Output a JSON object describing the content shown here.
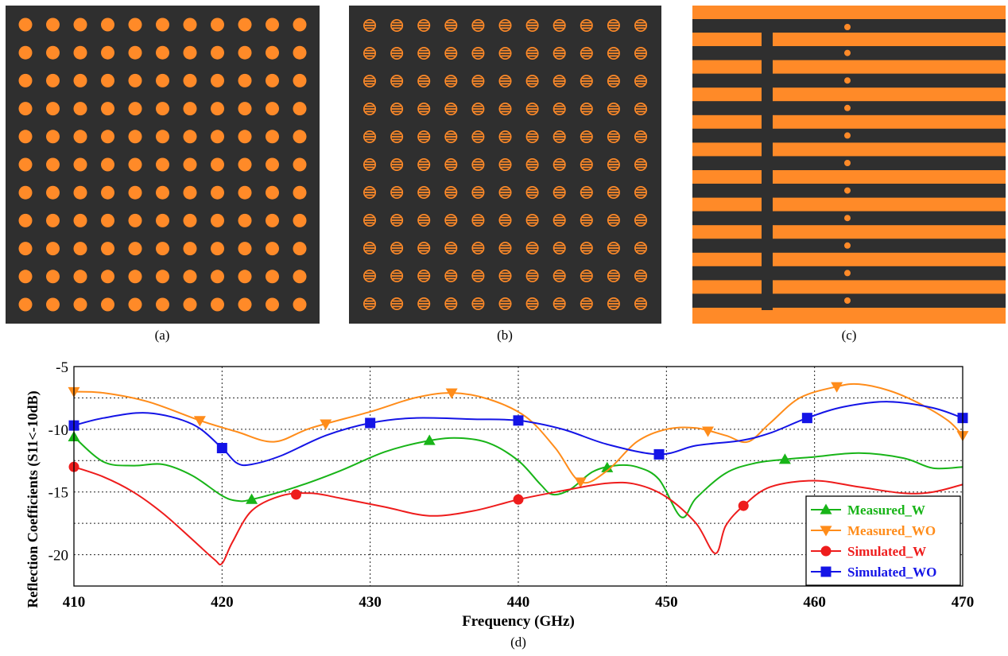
{
  "captions": {
    "a": "(a)",
    "b": "(b)",
    "c": "(c)",
    "d": "(d)"
  },
  "colors": {
    "orange": "#ff8a28",
    "dark": "#2f2f2f",
    "measured_w": "#18b418",
    "measured_wo": "#ff8c1a",
    "simulated_w": "#ee1c1c",
    "simulated_wo": "#1414e6"
  },
  "panels": {
    "a": {
      "pattern": "circular-patch-array",
      "rows": 11,
      "cols": 11
    },
    "b": {
      "pattern": "slotted-circular-patch-array",
      "rows": 11,
      "cols": 11
    },
    "c": {
      "pattern": "strip-grating",
      "strips": 11
    }
  },
  "chart_data": {
    "type": "line",
    "xlabel": "Frequency (GHz)",
    "ylabel": "Reflection Coefficients (S11<-10dB)",
    "xlim": [
      410,
      470
    ],
    "ylim": [
      -22.5,
      -5
    ],
    "xticks": [
      410,
      420,
      430,
      440,
      450,
      460,
      470
    ],
    "yticks": [
      -5,
      -10,
      -15,
      -20
    ],
    "grid": true,
    "legend_position": "bottom-right",
    "series": [
      {
        "name": "Measured_W",
        "color": "#18b418",
        "marker": "triangle-up",
        "x": [
          410,
          412,
          414,
          416,
          418,
          420,
          421,
          422,
          425,
          428,
          431,
          434,
          436,
          438,
          440,
          441.5,
          442.3,
          443.5,
          445,
          446.5,
          448,
          449.5,
          451,
          452,
          454,
          456,
          458,
          460,
          463,
          466,
          468,
          470
        ],
        "y": [
          -10.6,
          -12.6,
          -12.9,
          -12.8,
          -13.7,
          -15.3,
          -15.7,
          -15.6,
          -14.6,
          -13.3,
          -11.8,
          -10.9,
          -10.7,
          -11.1,
          -12.5,
          -14.4,
          -15.2,
          -14.8,
          -13.4,
          -12.9,
          -13.0,
          -14.0,
          -17.0,
          -15.5,
          -13.5,
          -12.7,
          -12.4,
          -12.2,
          -11.9,
          -12.3,
          -13.1,
          -13.0
        ],
        "markers_x": [
          410,
          422,
          434,
          446,
          458
        ]
      },
      {
        "name": "Measured_WO",
        "color": "#ff8c1a",
        "marker": "triangle-down",
        "x": [
          410,
          412,
          415,
          418.5,
          421,
          423.5,
          426,
          430,
          433,
          435.5,
          438,
          440.5,
          442.5,
          444.2,
          446,
          448,
          450,
          452,
          454,
          455.5,
          457,
          459,
          461.5,
          463,
          465,
          467,
          469,
          470
        ],
        "y": [
          -7.0,
          -7.1,
          -7.8,
          -9.3,
          -10.2,
          -11.0,
          -9.9,
          -8.6,
          -7.5,
          -7.1,
          -7.6,
          -9.0,
          -11.5,
          -14.2,
          -13.3,
          -11.0,
          -10.0,
          -9.9,
          -10.5,
          -11.0,
          -9.5,
          -7.5,
          -6.6,
          -6.4,
          -6.9,
          -7.9,
          -9.3,
          -10.5
        ],
        "markers_x": [
          410,
          418.5,
          427,
          435.5,
          444.2,
          452.8,
          461.5,
          470
        ]
      },
      {
        "name": "Simulated_W",
        "color": "#ee1c1c",
        "marker": "circle",
        "x": [
          410,
          412,
          414,
          416,
          418,
          419.5,
          420,
          420.7,
          422,
          424,
          426,
          428,
          431,
          434,
          437,
          440,
          443,
          446,
          448,
          450,
          452,
          453.3,
          454,
          455.2,
          457,
          460,
          463,
          466,
          468,
          470
        ],
        "y": [
          -13.0,
          -13.8,
          -15.0,
          -16.7,
          -18.8,
          -20.4,
          -20.7,
          -19.0,
          -16.5,
          -15.3,
          -15.1,
          -15.5,
          -16.2,
          -16.9,
          -16.5,
          -15.6,
          -14.9,
          -14.3,
          -14.4,
          -15.4,
          -17.5,
          -19.9,
          -17.7,
          -16.1,
          -14.6,
          -14.1,
          -14.6,
          -15.1,
          -15.0,
          -14.4
        ],
        "markers_x": [
          410,
          425,
          440,
          455.2
        ]
      },
      {
        "name": "Simulated_WO",
        "color": "#1414e6",
        "marker": "square",
        "x": [
          410,
          412,
          415,
          418,
          420,
          421,
          422,
          424,
          427,
          430,
          433,
          437,
          440,
          443,
          446,
          449.5,
          452,
          455,
          457,
          459.5,
          462,
          465,
          468,
          470
        ],
        "y": [
          -9.7,
          -9.1,
          -8.7,
          -9.6,
          -11.5,
          -12.7,
          -12.8,
          -12.1,
          -10.5,
          -9.5,
          -9.1,
          -9.2,
          -9.3,
          -10.0,
          -11.2,
          -12.0,
          -11.3,
          -10.9,
          -10.3,
          -9.1,
          -8.2,
          -7.8,
          -8.3,
          -9.1
        ],
        "markers_x": [
          410,
          420,
          430,
          440,
          449.5,
          459.5,
          470
        ]
      }
    ]
  }
}
